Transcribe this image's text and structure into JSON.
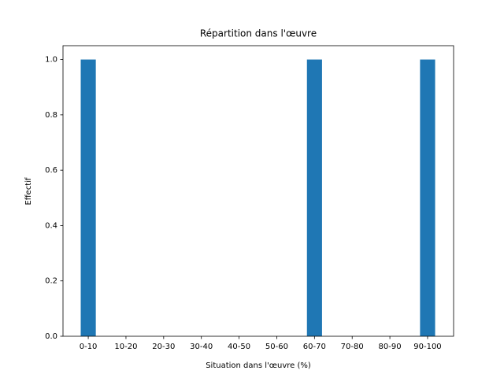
{
  "chart_data": {
    "type": "bar",
    "title": "Répartition dans l'œuvre",
    "x_label": "Situation dans l'œuvre (%)",
    "y_label": "Effectif",
    "categories": [
      "0-10",
      "10-20",
      "20-30",
      "30-40",
      "40-50",
      "50-60",
      "60-70",
      "70-80",
      "80-90",
      "90-100"
    ],
    "values": [
      1,
      0,
      0,
      0,
      0,
      0,
      1,
      0,
      0,
      1
    ],
    "color": "#1f77b4",
    "ylim": [
      0,
      1.05
    ],
    "yticks": [
      {
        "value": 0,
        "label": "0.0"
      },
      0.2,
      0.4,
      0.6,
      0.8,
      {
        "value": 1,
        "label": "1.0"
      }
    ],
    "grid": false
  }
}
